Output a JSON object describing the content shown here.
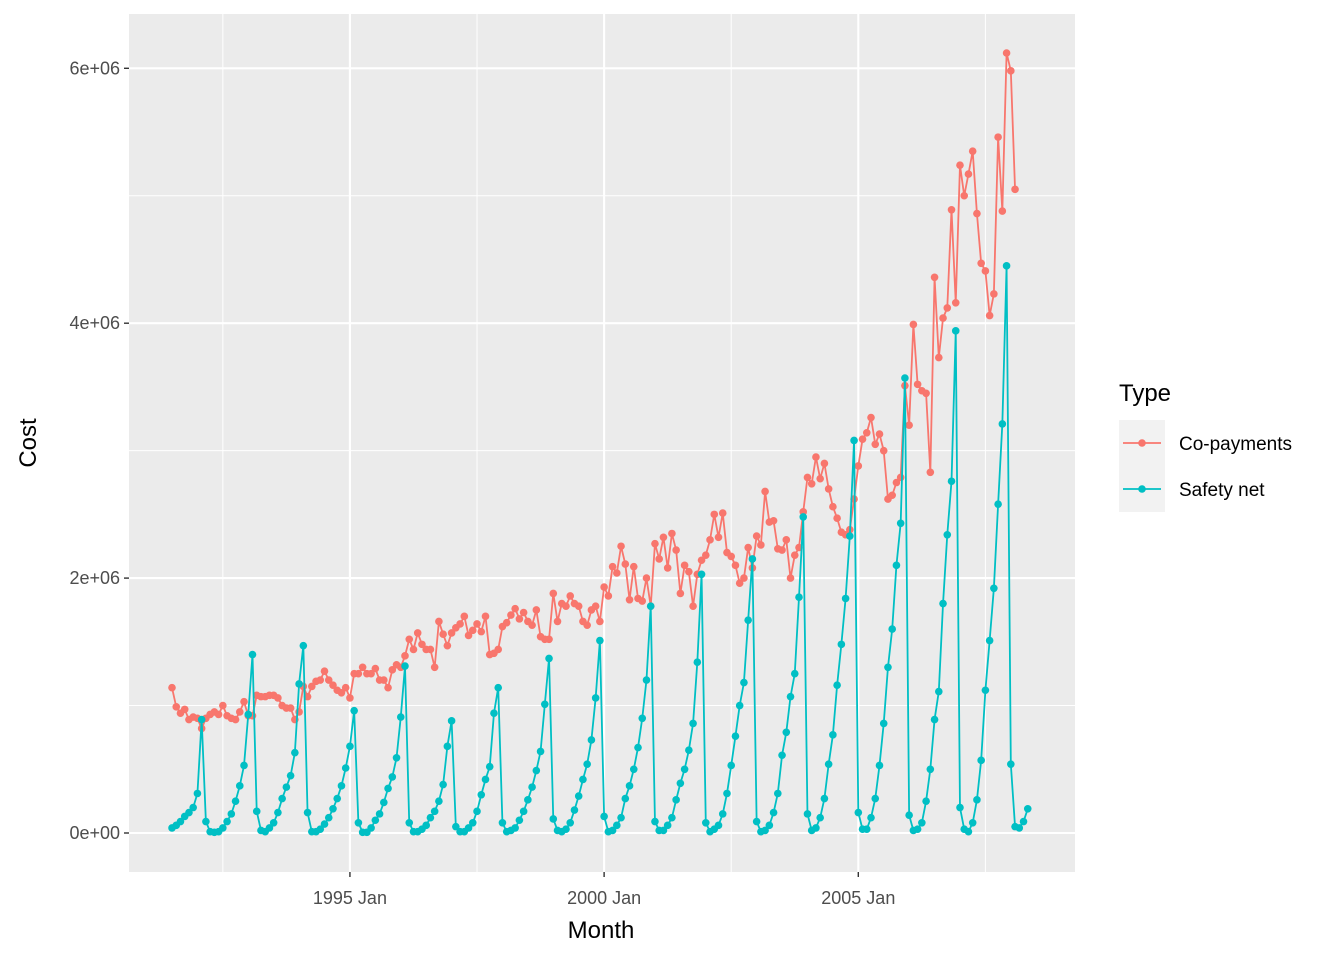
{
  "chart_data": {
    "type": "line",
    "xlabel": "Month",
    "ylabel": "Cost",
    "legend_title": "Type",
    "legend_position": "right",
    "grid": true,
    "background_color": "#ebebeb",
    "grid_color": "#ffffff",
    "x_axis": {
      "type": "date",
      "start": "1991-07",
      "end": "2008-06",
      "ticks": [
        "1995-01",
        "2000-01",
        "2005-01"
      ],
      "tick_labels": [
        "1995 Jan",
        "2000 Jan",
        "2005 Jan"
      ]
    },
    "y_axis": {
      "ticks": [
        0,
        2000000,
        4000000,
        6000000
      ],
      "tick_labels": [
        "0e+00",
        "2e+06",
        "4e+06",
        "6e+06"
      ]
    },
    "series": [
      {
        "name": "Co-payments",
        "color": "#F8766D",
        "start_month": "1991-07",
        "values": [
          1140000,
          990000,
          940000,
          970000,
          890000,
          910000,
          900000,
          820000,
          900000,
          930000,
          950000,
          930000,
          1000000,
          920000,
          900000,
          890000,
          950000,
          1030000,
          920000,
          920000,
          1080000,
          1070000,
          1070000,
          1080000,
          1080000,
          1060000,
          1000000,
          980000,
          980000,
          890000,
          950000,
          1150000,
          1070000,
          1150000,
          1190000,
          1200000,
          1270000,
          1200000,
          1160000,
          1120000,
          1100000,
          1140000,
          1060000,
          1250000,
          1250000,
          1300000,
          1250000,
          1250000,
          1290000,
          1200000,
          1200000,
          1140000,
          1280000,
          1320000,
          1300000,
          1390000,
          1520000,
          1440000,
          1570000,
          1480000,
          1440000,
          1440000,
          1300000,
          1660000,
          1560000,
          1470000,
          1570000,
          1610000,
          1640000,
          1700000,
          1550000,
          1590000,
          1640000,
          1580000,
          1700000,
          1400000,
          1410000,
          1440000,
          1620000,
          1650000,
          1710000,
          1760000,
          1680000,
          1730000,
          1660000,
          1630000,
          1750000,
          1540000,
          1520000,
          1520000,
          1880000,
          1660000,
          1800000,
          1780000,
          1860000,
          1800000,
          1780000,
          1660000,
          1630000,
          1750000,
          1780000,
          1660000,
          1930000,
          1860000,
          2090000,
          2040000,
          2250000,
          2110000,
          1830000,
          2090000,
          1840000,
          1820000,
          2000000,
          1780000,
          2270000,
          2150000,
          2320000,
          2080000,
          2350000,
          2220000,
          1880000,
          2100000,
          2050000,
          1780000,
          2030000,
          2140000,
          2180000,
          2300000,
          2500000,
          2320000,
          2510000,
          2200000,
          2170000,
          2100000,
          1960000,
          2000000,
          2240000,
          2080000,
          2330000,
          2260000,
          2680000,
          2440000,
          2450000,
          2230000,
          2220000,
          2300000,
          2000000,
          2180000,
          2240000,
          2520000,
          2790000,
          2740000,
          2950000,
          2780000,
          2900000,
          2700000,
          2560000,
          2470000,
          2360000,
          2340000,
          2380000,
          2620000,
          2880000,
          3090000,
          3140000,
          3260000,
          3050000,
          3130000,
          3000000,
          2620000,
          2650000,
          2750000,
          2790000,
          3510000,
          3200000,
          3990000,
          3520000,
          3470000,
          3450000,
          2830000,
          4360000,
          3730000,
          4040000,
          4120000,
          4890000,
          4160000,
          5240000,
          5000000,
          5170000,
          5350000,
          4860000,
          4470000,
          4410000,
          4060000,
          4230000,
          5460000,
          4880000,
          6120000,
          5980000,
          5050000
        ]
      },
      {
        "name": "Safety net",
        "color": "#00BFC4",
        "start_month": "1991-07",
        "values": [
          40000,
          60000,
          90000,
          130000,
          160000,
          200000,
          310000,
          890000,
          90000,
          10000,
          5000,
          10000,
          40000,
          90000,
          150000,
          250000,
          370000,
          530000,
          930000,
          1400000,
          170000,
          20000,
          10000,
          40000,
          80000,
          160000,
          270000,
          360000,
          450000,
          630000,
          1170000,
          1470000,
          160000,
          10000,
          10000,
          30000,
          70000,
          120000,
          190000,
          270000,
          370000,
          510000,
          680000,
          960000,
          80000,
          5000,
          5000,
          40000,
          100000,
          150000,
          240000,
          350000,
          440000,
          590000,
          910000,
          1310000,
          80000,
          10000,
          10000,
          30000,
          60000,
          120000,
          170000,
          250000,
          380000,
          680000,
          880000,
          50000,
          10000,
          10000,
          40000,
          80000,
          170000,
          300000,
          420000,
          520000,
          940000,
          1140000,
          80000,
          10000,
          20000,
          40000,
          100000,
          170000,
          260000,
          360000,
          490000,
          640000,
          1010000,
          1370000,
          110000,
          20000,
          10000,
          30000,
          80000,
          180000,
          290000,
          420000,
          540000,
          730000,
          1060000,
          1510000,
          130000,
          10000,
          20000,
          60000,
          120000,
          270000,
          370000,
          500000,
          670000,
          900000,
          1200000,
          1780000,
          90000,
          20000,
          20000,
          60000,
          120000,
          260000,
          390000,
          500000,
          650000,
          860000,
          1340000,
          2030000,
          80000,
          10000,
          30000,
          60000,
          150000,
          310000,
          530000,
          760000,
          1000000,
          1180000,
          1670000,
          2150000,
          90000,
          10000,
          20000,
          60000,
          160000,
          310000,
          610000,
          790000,
          1070000,
          1250000,
          1850000,
          2480000,
          150000,
          20000,
          40000,
          120000,
          270000,
          540000,
          770000,
          1160000,
          1480000,
          1840000,
          2330000,
          3080000,
          160000,
          30000,
          30000,
          120000,
          270000,
          530000,
          860000,
          1300000,
          1600000,
          2100000,
          2430000,
          3570000,
          140000,
          20000,
          30000,
          80000,
          250000,
          500000,
          890000,
          1110000,
          1800000,
          2340000,
          2760000,
          3940000,
          200000,
          30000,
          10000,
          80000,
          260000,
          570000,
          1120000,
          1510000,
          1920000,
          2580000,
          3210000,
          4450000,
          540000,
          50000,
          40000,
          90000,
          190000
        ]
      }
    ]
  }
}
